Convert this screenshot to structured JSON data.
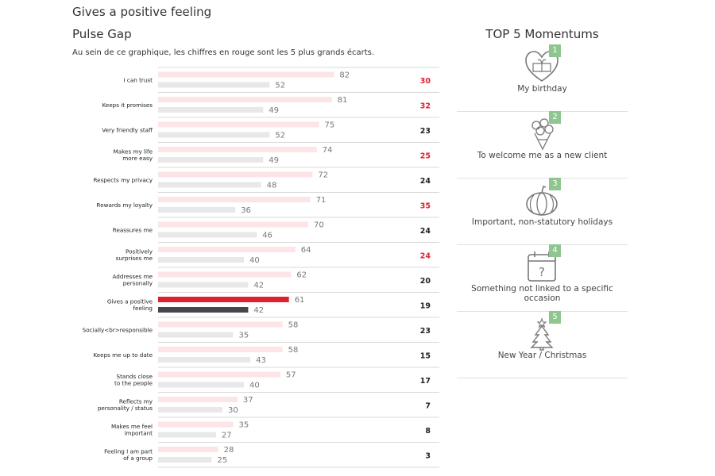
{
  "page": {
    "title": "Gives a positive feeling",
    "section_title": "Pulse Gap",
    "subtitle": "Au sein de ce graphique, les chiffres en rouge sont les 5 plus grands écarts."
  },
  "chart_data": {
    "type": "bar",
    "orientation": "horizontal",
    "highlight_category": "Gives a positive\nfeeling",
    "xlim": [
      0,
      100
    ],
    "categories": [
      "I can trust",
      "Keeps it promises",
      "Very friendly staff",
      "Makes my life\nmore easy",
      "Respects my privacy",
      "Rewards my loyalty",
      "Reassures me",
      "Positively\nsurprises me",
      "Addresses me\npersonally",
      "Gives a positive\nfeeling",
      "Socially<br>responsible",
      "Keeps me up to date",
      "Stands close\nto the people",
      "Reflects my\npersonality / status",
      "Makes me feel\nimportant",
      "Feeling I am part\nof a group"
    ],
    "series": [
      {
        "values": [
          82,
          81,
          75,
          74,
          72,
          71,
          70,
          64,
          62,
          61,
          58,
          58,
          57,
          37,
          35,
          28
        ]
      },
      {
        "values": [
          52,
          49,
          52,
          49,
          48,
          36,
          46,
          40,
          42,
          42,
          35,
          43,
          40,
          30,
          27,
          25
        ]
      }
    ],
    "gaps": [
      30,
      32,
      23,
      25,
      24,
      35,
      24,
      24,
      20,
      19,
      23,
      15,
      17,
      7,
      8,
      3
    ],
    "top_gaps": [
      30,
      32,
      25,
      35,
      24
    ],
    "colors": {
      "bar_light_primary": "#fde4e6",
      "bar_light_secondary": "#e8e8e8",
      "bar_highlight_primary": "#e0202e",
      "bar_highlight_secondary": "#46464c",
      "gap_top": "#e0202e",
      "gap_normal": "#222222"
    }
  },
  "momentums": {
    "title": "TOP 5 Momentums",
    "items": [
      {
        "rank": "1",
        "label": "My birthday",
        "icon": "heart-gift-icon"
      },
      {
        "rank": "2",
        "label": "To welcome me as a new client",
        "icon": "bouquet-icon"
      },
      {
        "rank": "3",
        "label": "Important, non-statutory holidays",
        "icon": "pumpkin-icon"
      },
      {
        "rank": "4",
        "label": "Something not linked to a specific occasion",
        "icon": "question-calendar-icon"
      },
      {
        "rank": "5",
        "label": "New Year / Christmas",
        "icon": "christmas-tree-icon"
      }
    ]
  }
}
